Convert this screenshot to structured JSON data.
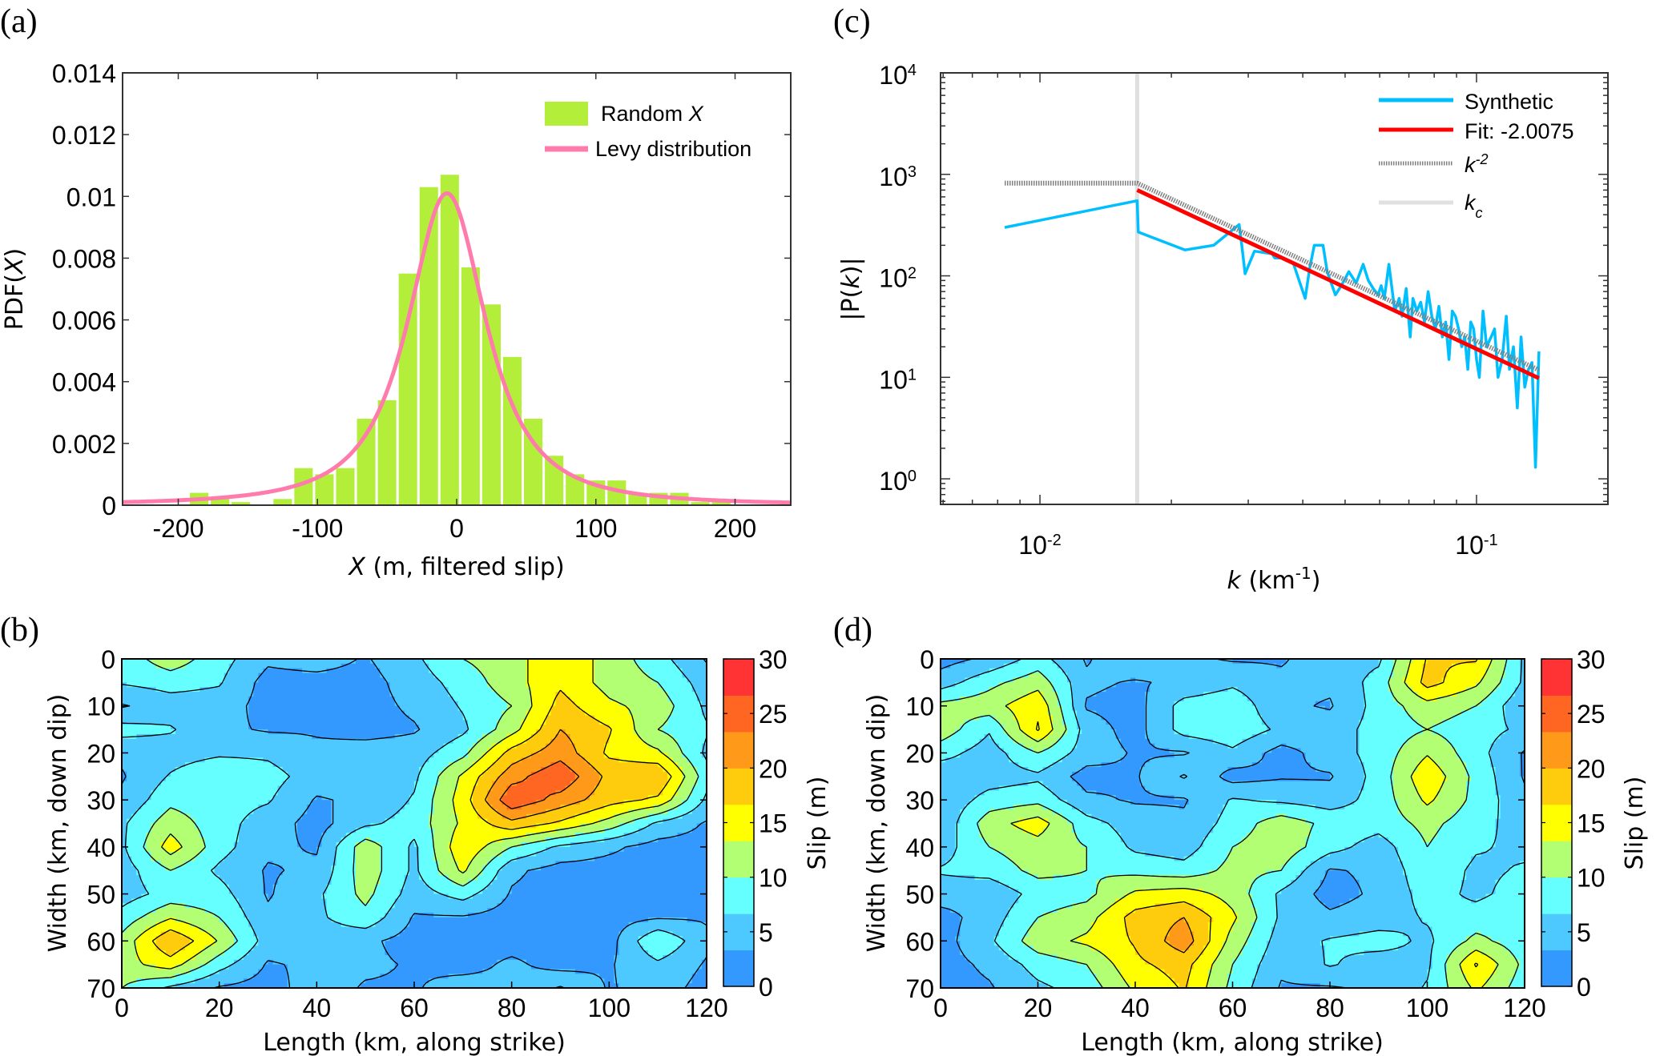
{
  "figure": {
    "panels": [
      "(a)",
      "(b)",
      "(c)",
      "(d)"
    ]
  },
  "chart_data": [
    {
      "id": "a",
      "type": "bar",
      "panel_label": "(a)",
      "title": "",
      "xlabel_italic": "X",
      "xlabel_rest": " (m, filtered slip)",
      "ylabel_prefix": "PDF(",
      "ylabel_italic": "X",
      "ylabel_suffix": ")",
      "xlim": [
        -240,
        240
      ],
      "ylim": [
        0,
        0.014
      ],
      "xticks": [
        -200,
        -100,
        0,
        100,
        200
      ],
      "xtick_labels": [
        "-200",
        "-100",
        "0",
        "100",
        "200"
      ],
      "yticks": [
        0,
        0.002,
        0.004,
        0.006,
        0.008,
        0.01,
        0.012,
        0.014
      ],
      "ytick_labels": [
        "0",
        "0.002",
        "0.004",
        "0.006",
        "0.008",
        "0.01",
        "0.012",
        "0.014"
      ],
      "bin_width": 15,
      "series": [
        {
          "name": "Random X",
          "kind": "histogram",
          "color": "#B3EE3A",
          "x": [
            -185,
            -170,
            -155,
            -125,
            -110,
            -95,
            -80,
            -65,
            -50,
            -35,
            -20,
            -5,
            10,
            25,
            40,
            55,
            70,
            85,
            100,
            115,
            130,
            145,
            160,
            175,
            190
          ],
          "values": [
            0.0004,
            0.0002,
            0.0001,
            0.0002,
            0.0012,
            0.001,
            0.0012,
            0.0028,
            0.0034,
            0.0075,
            0.0103,
            0.0107,
            0.0077,
            0.0065,
            0.0048,
            0.0028,
            0.0016,
            0.001,
            0.0008,
            0.0008,
            0.0004,
            0.0004,
            0.0004,
            0.0001,
            0.0002
          ]
        },
        {
          "name": "Levy distribution",
          "kind": "line",
          "color": "#FF7BAC",
          "location": -7,
          "scale": 31.5,
          "note_shape": "symmetric stable, peak ~0.0101"
        }
      ],
      "legend": {
        "placement": "top-right",
        "entries": [
          {
            "label_prefix": "Random ",
            "label_italic": "X",
            "color": "#B3EE3A",
            "kind": "patch"
          },
          {
            "label_prefix": "Levy distribution",
            "label_italic": "",
            "color": "#FF7BAC",
            "kind": "line"
          }
        ]
      }
    },
    {
      "id": "c",
      "type": "line",
      "panel_label": "(c)",
      "title": "",
      "xscale": "log",
      "yscale": "log",
      "xlabel_italic": "k",
      "xlabel_rest": " (km",
      "xlabel_sup": "-1",
      "xlabel_close": ")",
      "ylabel_prefix": "|P(",
      "ylabel_italic": "k",
      "ylabel_suffix": ")|",
      "xlim": [
        0.00592,
        0.2
      ],
      "ylim": [
        0.56,
        10000
      ],
      "xticks": [
        0.01,
        0.1
      ],
      "xtick_labels": [
        {
          "base": "10",
          "exp": "-2"
        },
        {
          "base": "10",
          "exp": "-1"
        }
      ],
      "yticks": [
        1,
        10,
        100,
        1000,
        10000
      ],
      "ytick_labels": [
        {
          "base": "10",
          "exp": "0"
        },
        {
          "base": "10",
          "exp": "1"
        },
        {
          "base": "10",
          "exp": "2"
        },
        {
          "base": "10",
          "exp": "3"
        },
        {
          "base": "10",
          "exp": "4"
        }
      ],
      "kc": 0.0167,
      "series": [
        {
          "name": "Synthetic",
          "color": "#00BFFF",
          "x": [
            0.0083,
            0.0167,
            0.0168,
            0.0215,
            0.025,
            0.0275,
            0.0286,
            0.029,
            0.0295,
            0.031,
            0.034,
            0.0345,
            0.036,
            0.038,
            0.0405,
            0.0415,
            0.0425,
            0.0445,
            0.0455,
            0.0475,
            0.049,
            0.051,
            0.053,
            0.055,
            0.0565,
            0.058,
            0.0595,
            0.0605,
            0.0615,
            0.063,
            0.065,
            0.0665,
            0.0675,
            0.069,
            0.0705,
            0.0715,
            0.073,
            0.0745,
            0.076,
            0.0775,
            0.079,
            0.0805,
            0.082,
            0.0835,
            0.085,
            0.0865,
            0.088,
            0.0895,
            0.091,
            0.0925,
            0.094,
            0.0955,
            0.097,
            0.0985,
            0.1,
            0.1015,
            0.1035,
            0.1055,
            0.108,
            0.11,
            0.112,
            0.1145,
            0.117,
            0.119,
            0.1215,
            0.124,
            0.1265,
            0.129,
            0.1315,
            0.134,
            0.1365,
            0.139
          ],
          "values": [
            300,
            550,
            270,
            180,
            200,
            280,
            320,
            200,
            105,
            175,
            165,
            150,
            150,
            135,
            60,
            120,
            200,
            200,
            110,
            65,
            80,
            110,
            85,
            130,
            90,
            75,
            65,
            80,
            60,
            130,
            45,
            60,
            40,
            75,
            25,
            60,
            45,
            55,
            35,
            70,
            40,
            30,
            50,
            25,
            35,
            15,
            45,
            40,
            30,
            20,
            25,
            12,
            35,
            30,
            15,
            10,
            45,
            20,
            25,
            30,
            10,
            15,
            40,
            12,
            20,
            5,
            25,
            8,
            12,
            14,
            1.3,
            18
          ]
        },
        {
          "name": "Fit: -2.0075",
          "color": "#FF0000",
          "slope": -2.0075,
          "x": [
            0.0167,
            0.139
          ],
          "values": [
            700,
            9.8
          ]
        },
        {
          "name": "k^-2",
          "color": "#808080",
          "dashed": true,
          "x": [
            0.0083,
            0.0167,
            0.139
          ],
          "values": [
            820,
            820,
            11.8
          ]
        },
        {
          "name": "k_c",
          "color": "#E0E0E0",
          "vertical_at": 0.0167
        }
      ],
      "legend": {
        "placement": "top-right",
        "entries": [
          {
            "label": "Synthetic",
            "color": "#00BFFF",
            "style": "solid"
          },
          {
            "label": "Fit: -2.0075",
            "color": "#FF0000",
            "style": "solid"
          },
          {
            "label_base": "k",
            "label_sup": "-2",
            "color": "#808080",
            "style": "dotted"
          },
          {
            "label_base": "k",
            "label_sub": "c",
            "color": "#E0E0E0",
            "style": "solid"
          }
        ]
      }
    },
    {
      "id": "b",
      "type": "heatmap",
      "subtype": "filled-contour",
      "panel_label": "(b)",
      "xlabel": "Length (km, along strike)",
      "ylabel": "Width (km, down dip)",
      "colorbar_label": "Slip (m)",
      "xlim": [
        0,
        120
      ],
      "ylim": [
        70,
        0
      ],
      "xticks": [
        0,
        20,
        40,
        60,
        80,
        100,
        120
      ],
      "yticks": [
        0,
        10,
        20,
        30,
        40,
        50,
        60,
        70
      ],
      "colorbar_ticks": [
        0,
        5,
        10,
        15,
        20,
        25,
        30
      ],
      "levels": [
        0,
        3.333,
        6.667,
        10,
        13.333,
        16.667,
        20,
        23.333,
        26.667,
        30
      ],
      "colors": [
        "#3399FF",
        "#4DC9FF",
        "#66FFFF",
        "#B3FF73",
        "#FFFF00",
        "#FFCC0D",
        "#FF9919",
        "#FF6622",
        "#FF3333"
      ],
      "grid_x": [
        0,
        10,
        20,
        30,
        40,
        50,
        60,
        70,
        80,
        90,
        100,
        110,
        120
      ],
      "grid_y": [
        0,
        5,
        10,
        15,
        20,
        25,
        30,
        35,
        40,
        45,
        50,
        55,
        60,
        65,
        70
      ],
      "slip": [
        [
          8,
          12,
          8,
          4,
          5,
          3,
          6,
          10,
          12,
          16,
          12,
          8,
          3
        ],
        [
          7,
          8,
          7,
          2,
          2,
          2,
          5,
          8,
          12,
          16,
          12,
          10,
          5
        ],
        [
          3,
          5,
          5,
          2,
          2,
          2,
          4,
          7,
          10,
          18,
          14,
          12,
          6
        ],
        [
          8,
          7,
          4,
          3,
          3,
          2,
          3,
          6,
          12,
          20,
          17,
          10,
          7
        ],
        [
          4,
          5,
          6,
          6,
          4,
          5,
          5,
          9,
          18,
          22,
          16,
          14,
          6
        ],
        [
          3,
          7,
          10,
          8,
          5,
          5,
          6,
          14,
          22,
          26,
          19,
          20,
          8
        ],
        [
          4,
          9,
          8,
          7,
          3,
          4,
          7,
          15,
          26,
          22,
          18,
          16,
          6
        ],
        [
          6,
          12,
          8,
          5,
          2,
          6,
          8,
          14,
          19,
          16,
          12,
          6,
          3
        ],
        [
          6,
          15,
          8,
          4,
          3,
          12,
          6,
          16,
          10,
          6,
          4,
          2,
          2
        ],
        [
          5,
          10,
          6,
          3,
          4,
          12,
          6,
          14,
          4,
          2,
          2,
          2,
          2
        ],
        [
          5,
          8,
          8,
          3,
          6,
          11,
          5,
          8,
          3,
          2,
          2,
          2,
          2
        ],
        [
          8,
          13,
          10,
          4,
          6,
          9,
          3,
          3,
          2,
          2,
          2,
          3,
          3
        ],
        [
          11,
          20,
          13,
          5,
          5,
          4,
          2,
          2,
          2,
          2,
          2,
          10,
          4
        ],
        [
          12,
          15,
          8,
          3,
          4,
          4,
          3,
          2,
          4,
          2,
          3,
          6,
          3
        ],
        [
          10,
          6,
          3,
          2,
          5,
          3,
          3,
          5,
          4,
          7,
          3,
          5,
          2
        ]
      ]
    },
    {
      "id": "d",
      "type": "heatmap",
      "subtype": "filled-contour",
      "panel_label": "(d)",
      "xlabel": "Length (km, along strike)",
      "ylabel": "Width (km, down dip)",
      "colorbar_label": "Slip (m)",
      "xlim": [
        0,
        120
      ],
      "ylim": [
        70,
        0
      ],
      "xticks": [
        0,
        20,
        40,
        60,
        80,
        100,
        120
      ],
      "yticks": [
        0,
        10,
        20,
        30,
        40,
        50,
        60,
        70
      ],
      "colorbar_ticks": [
        0,
        5,
        10,
        15,
        20,
        25,
        30
      ],
      "levels": [
        0,
        3.333,
        6.667,
        10,
        13.333,
        16.667,
        20,
        23.333,
        26.667,
        30
      ],
      "colors": [
        "#3399FF",
        "#4DC9FF",
        "#66FFFF",
        "#B3FF73",
        "#FFFF00",
        "#FFCC0D",
        "#FF9919",
        "#FF6622",
        "#FF3333"
      ],
      "grid_x": [
        0,
        10,
        20,
        30,
        40,
        50,
        60,
        70,
        80,
        90,
        100,
        110,
        120
      ],
      "grid_y": [
        0,
        5,
        10,
        15,
        20,
        25,
        30,
        35,
        40,
        45,
        50,
        55,
        60,
        65,
        70
      ],
      "slip": [
        [
          2,
          4,
          8,
          3,
          6,
          4,
          3,
          3,
          5,
          6,
          17,
          17,
          6
        ],
        [
          5,
          9,
          12,
          4,
          3,
          4,
          6,
          4,
          4,
          8,
          18,
          14,
          6
        ],
        [
          11,
          12,
          16,
          3,
          2,
          8,
          9,
          4,
          3,
          8,
          12,
          10,
          4
        ],
        [
          12,
          7,
          17,
          5,
          2,
          8,
          9,
          6,
          5,
          8,
          10,
          8,
          6
        ],
        [
          8,
          5,
          10,
          5,
          3,
          3,
          6,
          2,
          5,
          8,
          13,
          8,
          3
        ],
        [
          4,
          5,
          6,
          2,
          3,
          7,
          2,
          3,
          3,
          8,
          16,
          9,
          3
        ],
        [
          4,
          8,
          9,
          4,
          3,
          3,
          7,
          6,
          5,
          8,
          14,
          9,
          4
        ],
        [
          4,
          12,
          15,
          8,
          5,
          4,
          8,
          12,
          9,
          8,
          11,
          8,
          5
        ],
        [
          5,
          10,
          12,
          10,
          6,
          5,
          10,
          12,
          8,
          5,
          10,
          7,
          6
        ],
        [
          7,
          8,
          11,
          10,
          9,
          8,
          11,
          10,
          3,
          4,
          9,
          6,
          7
        ],
        [
          5,
          4,
          8,
          9,
          14,
          15,
          12,
          6,
          2,
          4,
          8,
          6,
          8
        ],
        [
          2,
          5,
          10,
          12,
          18,
          20,
          14,
          6,
          4,
          5,
          7,
          8,
          9
        ],
        [
          2,
          6,
          12,
          14,
          17,
          22,
          12,
          5,
          7,
          8,
          6,
          11,
          8
        ],
        [
          2,
          4,
          8,
          10,
          16,
          18,
          10,
          4,
          7,
          5,
          6,
          17,
          9
        ],
        [
          2,
          3,
          6,
          8,
          14,
          17,
          9,
          3,
          3,
          4,
          7,
          14,
          8
        ]
      ]
    }
  ]
}
